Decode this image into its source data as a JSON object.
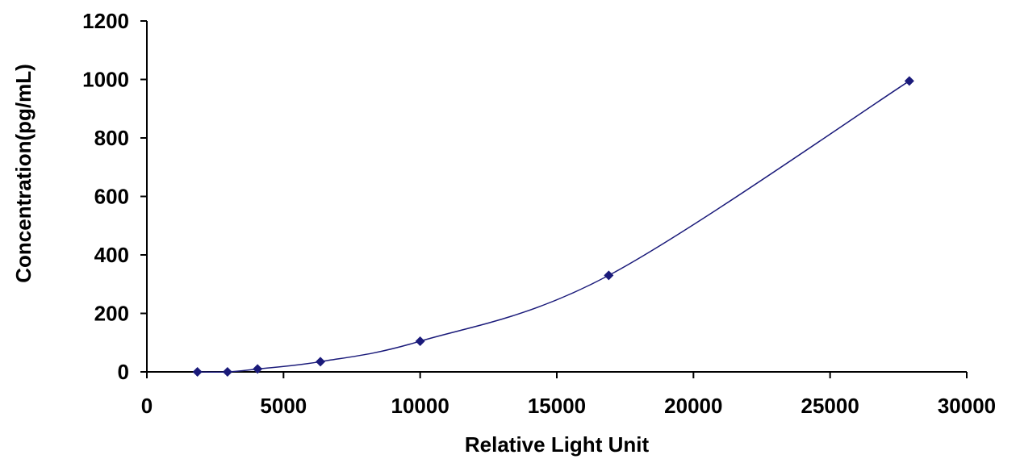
{
  "chart_data": {
    "type": "line",
    "title": "",
    "xlabel": "Relative Light Unit",
    "ylabel": "Concentration(pg/mL)",
    "xlim": [
      0,
      30000
    ],
    "ylim": [
      0,
      1200
    ],
    "x_ticks": [
      0,
      5000,
      10000,
      15000,
      20000,
      25000,
      30000
    ],
    "y_ticks": [
      0,
      200,
      400,
      600,
      800,
      1000,
      1200
    ],
    "x_tick_labels": [
      "0",
      "5000",
      "10000",
      "15000",
      "20000",
      "25000",
      "30000"
    ],
    "y_tick_labels": [
      "0",
      "200",
      "400",
      "600",
      "800",
      "1000",
      "1200"
    ],
    "grid": false,
    "legend": "none",
    "line_style": "smooth",
    "marker": "diamond",
    "color": "#1a1a7a",
    "series": [
      {
        "x": [
          1850,
          2950,
          4050,
          6350,
          10000,
          16900,
          27900
        ],
        "y": [
          0,
          0,
          10,
          35,
          105,
          330,
          995
        ]
      }
    ]
  }
}
